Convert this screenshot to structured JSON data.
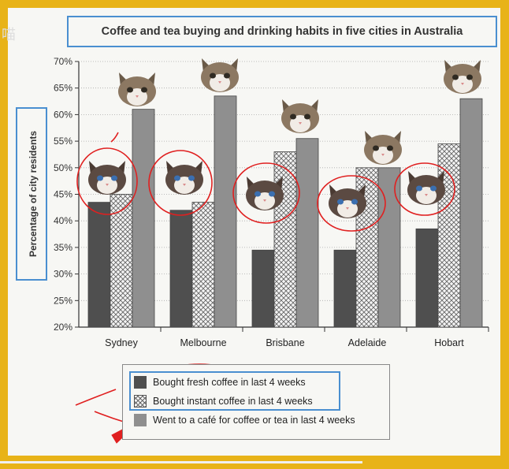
{
  "chart_data": {
    "type": "bar",
    "title": "Coffee and tea buying and drinking habits in five cities in Australia",
    "ylabel": "Percentage of city residents",
    "xlabel": "",
    "ylim": [
      20,
      70
    ],
    "yticks": [
      "20%",
      "25%",
      "30%",
      "35%",
      "40%",
      "45%",
      "50%",
      "55%",
      "60%",
      "65%",
      "70%"
    ],
    "categories": [
      "Sydney",
      "Melbourne",
      "Brisbane",
      "Adelaide",
      "Hobart"
    ],
    "series": [
      {
        "name": "Bought fresh coffee in last 4 weeks",
        "values": [
          43.5,
          42,
          34.5,
          34.5,
          38.5
        ],
        "color": "#4f4f4f"
      },
      {
        "name": "Bought instant coffee in last 4 weeks",
        "values": [
          45,
          43.5,
          53,
          50,
          54.5
        ],
        "color": "#f4f4f4"
      },
      {
        "name": "Went to a café for coffee or tea in last 4 weeks",
        "values": [
          61,
          63.5,
          55.5,
          50,
          63
        ],
        "color": "#8f8f8f"
      }
    ],
    "legend_position": "bottom",
    "grid": false
  },
  "colors": {
    "frame": "#e8b318",
    "highlight": "#4a8fd0",
    "annotation": "#e02020"
  },
  "stickers": [
    "cat-face-icon"
  ],
  "legend_label_overrides": {
    "corner_glyph": "喵"
  }
}
